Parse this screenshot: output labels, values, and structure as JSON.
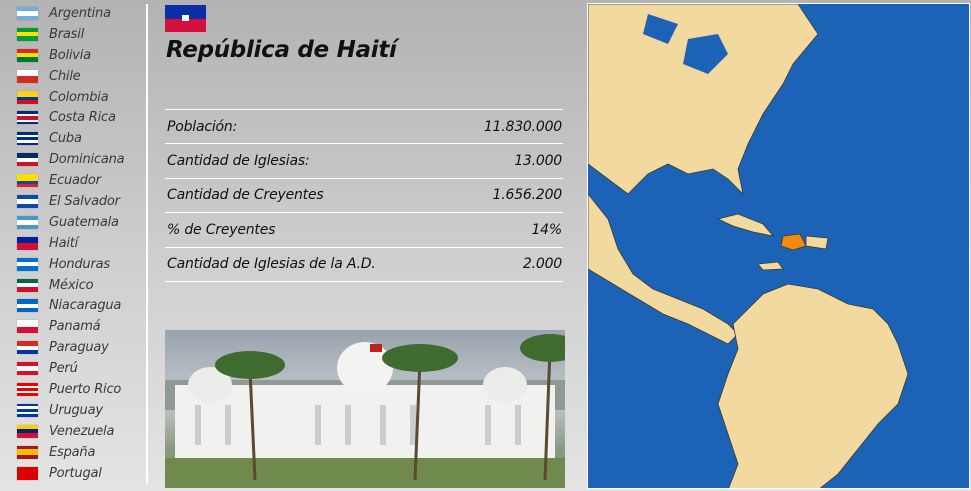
{
  "sidebar": {
    "items": [
      {
        "label": "Argentina",
        "flag": [
          "#74acdf",
          "#ffffff",
          "#74acdf"
        ]
      },
      {
        "label": "Brasil",
        "flag": [
          "#009c3b",
          "#ffdf00",
          "#009c3b"
        ]
      },
      {
        "label": "Bolivia",
        "flag": [
          "#d52b1e",
          "#f9e300",
          "#007934"
        ]
      },
      {
        "label": "Chile",
        "flag": [
          "#ffffff",
          "#d52b1e"
        ]
      },
      {
        "label": "Colombia",
        "flag": [
          "#fcd116",
          "#fcd116",
          "#003893",
          "#ce1126"
        ]
      },
      {
        "label": "Costa Rica",
        "flag": [
          "#002b7f",
          "#ffffff",
          "#ce1126",
          "#ce1126",
          "#ffffff",
          "#002b7f"
        ]
      },
      {
        "label": "Cuba",
        "flag": [
          "#002a8f",
          "#ffffff",
          "#002a8f",
          "#ffffff",
          "#002a8f"
        ]
      },
      {
        "label": "Dominicana",
        "flag": [
          "#002d62",
          "#ffffff",
          "#ce1126"
        ]
      },
      {
        "label": "Ecuador",
        "flag": [
          "#ffdd00",
          "#ffdd00",
          "#034ea2",
          "#ed1c24"
        ]
      },
      {
        "label": "El Salvador",
        "flag": [
          "#0f47af",
          "#ffffff",
          "#0f47af"
        ]
      },
      {
        "label": "Guatemala",
        "flag": [
          "#4997d0",
          "#ffffff",
          "#4997d0"
        ]
      },
      {
        "label": "Haití",
        "flag": [
          "#00209f",
          "#d21034"
        ]
      },
      {
        "label": "Honduras",
        "flag": [
          "#0073cf",
          "#ffffff",
          "#0073cf"
        ]
      },
      {
        "label": "México",
        "flag": [
          "#006847",
          "#ffffff",
          "#ce1126"
        ]
      },
      {
        "label": "Niacaragua",
        "flag": [
          "#0067c6",
          "#ffffff",
          "#0067c6"
        ]
      },
      {
        "label": "Panamá",
        "flag": [
          "#ffffff",
          "#d21034"
        ]
      },
      {
        "label": "Paraguay",
        "flag": [
          "#d52b1e",
          "#ffffff",
          "#0038a8"
        ]
      },
      {
        "label": "Perú",
        "flag": [
          "#d91023",
          "#ffffff",
          "#d91023"
        ]
      },
      {
        "label": "Puerto Rico",
        "flag": [
          "#ed0000",
          "#ffffff",
          "#ed0000",
          "#ffffff",
          "#ed0000"
        ]
      },
      {
        "label": "Uruguay",
        "flag": [
          "#0038a8",
          "#ffffff",
          "#0038a8",
          "#ffffff",
          "#0038a8"
        ]
      },
      {
        "label": "Venezuela",
        "flag": [
          "#ffcc00",
          "#00247d",
          "#cf142b"
        ]
      },
      {
        "label": "España",
        "flag": [
          "#aa151b",
          "#f1bf00",
          "#f1bf00",
          "#aa151b"
        ]
      },
      {
        "label": "Portugal",
        "flag": [
          "#d00",
          "#d00"
        ]
      }
    ]
  },
  "country": {
    "title": "República de Haití",
    "flag_colors": [
      "#00209f",
      "#d21034"
    ]
  },
  "stats": [
    {
      "label": "Población:",
      "value": "11.830.000"
    },
    {
      "label": "Cantidad de Iglesias:",
      "value": "13.000"
    },
    {
      "label": "Cantidad de Creyentes",
      "value": "1.656.200"
    },
    {
      "label": "% de Creyentes",
      "value": "14%"
    },
    {
      "label": "Cantidad de Iglesias de la A.D.",
      "value": "2.000"
    }
  ],
  "map": {
    "ocean_color": "#1c63b8",
    "land_color": "#f2d9a0",
    "highlight_color": "#f08a10",
    "highlighted": "Haití"
  }
}
